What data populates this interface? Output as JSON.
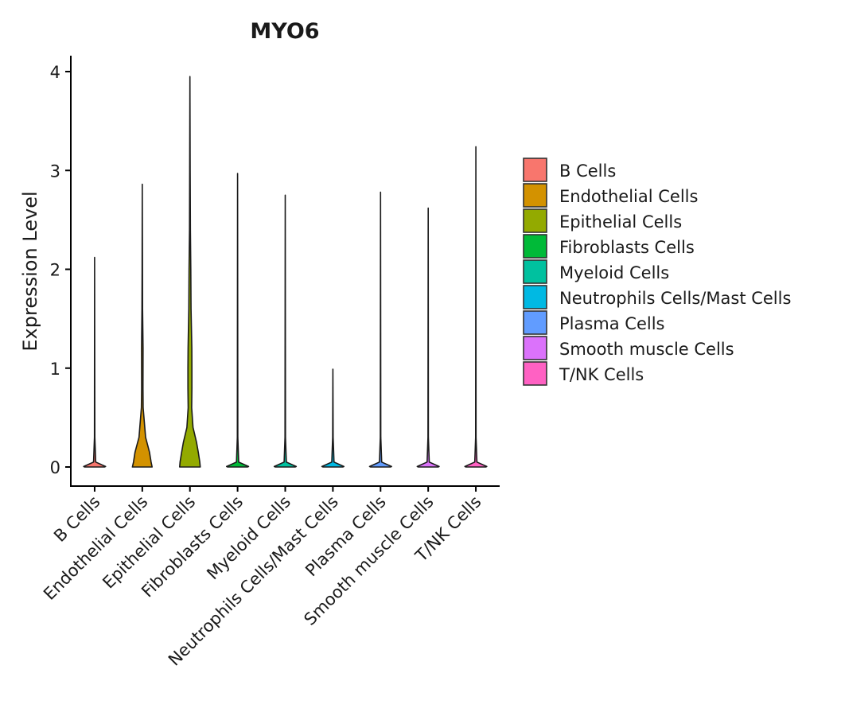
{
  "chart_data": {
    "type": "violin",
    "title": "MYO6",
    "xlabel": "",
    "ylabel": "Expression Level",
    "ylim": [
      -0.03,
      4.15
    ],
    "yticks": [
      0,
      1,
      2,
      3,
      4
    ],
    "grid": false,
    "legend_position": "right",
    "categories": [
      "B Cells",
      "Endothelial Cells",
      "Epithelial Cells",
      "Fibroblasts Cells",
      "Myeloid Cells",
      "Neutrophils Cells/Mast Cells",
      "Plasma Cells",
      "Smooth muscle Cells",
      "T/NK Cells"
    ],
    "colors": [
      "#F8766D",
      "#D39200",
      "#93AA00",
      "#00BA38",
      "#00C19F",
      "#00B9E3",
      "#619CFF",
      "#DB72FB",
      "#FF61C3"
    ],
    "max_values": [
      2.12,
      2.86,
      3.95,
      2.97,
      2.75,
      0.99,
      2.78,
      2.62,
      3.24
    ],
    "density_profiles": [
      [
        [
          0,
          0.45
        ],
        [
          0.005,
          0.5
        ],
        [
          0.05,
          0.05
        ],
        [
          0.3,
          0.01
        ],
        [
          2.12,
          0.0
        ]
      ],
      [
        [
          0,
          0.45
        ],
        [
          0.05,
          0.4
        ],
        [
          0.15,
          0.33
        ],
        [
          0.3,
          0.15
        ],
        [
          0.6,
          0.04
        ],
        [
          0.8,
          0.03
        ],
        [
          1.2,
          0.035
        ],
        [
          1.6,
          0.015
        ],
        [
          2.0,
          0.01
        ],
        [
          2.86,
          0.0
        ]
      ],
      [
        [
          0,
          0.47
        ],
        [
          0.05,
          0.45
        ],
        [
          0.15,
          0.38
        ],
        [
          0.25,
          0.3
        ],
        [
          0.4,
          0.14
        ],
        [
          0.6,
          0.08
        ],
        [
          0.8,
          0.09
        ],
        [
          1.0,
          0.09
        ],
        [
          1.2,
          0.085
        ],
        [
          1.6,
          0.05
        ],
        [
          2.0,
          0.04
        ],
        [
          2.4,
          0.02
        ],
        [
          3.0,
          0.01
        ],
        [
          3.95,
          0.0
        ]
      ],
      [
        [
          0,
          0.45
        ],
        [
          0.005,
          0.5
        ],
        [
          0.05,
          0.05
        ],
        [
          0.3,
          0.01
        ],
        [
          2.97,
          0.0
        ]
      ],
      [
        [
          0,
          0.45
        ],
        [
          0.005,
          0.5
        ],
        [
          0.05,
          0.05
        ],
        [
          0.3,
          0.01
        ],
        [
          2.75,
          0.0
        ]
      ],
      [
        [
          0,
          0.45
        ],
        [
          0.005,
          0.5
        ],
        [
          0.05,
          0.05
        ],
        [
          0.3,
          0.01
        ],
        [
          0.99,
          0.0
        ]
      ],
      [
        [
          0,
          0.45
        ],
        [
          0.005,
          0.5
        ],
        [
          0.05,
          0.05
        ],
        [
          0.3,
          0.01
        ],
        [
          2.78,
          0.0
        ]
      ],
      [
        [
          0,
          0.45
        ],
        [
          0.005,
          0.5
        ],
        [
          0.05,
          0.05
        ],
        [
          0.3,
          0.01
        ],
        [
          2.62,
          0.0
        ]
      ],
      [
        [
          0,
          0.45
        ],
        [
          0.005,
          0.5
        ],
        [
          0.05,
          0.05
        ],
        [
          0.3,
          0.01
        ],
        [
          3.24,
          0.0
        ]
      ]
    ],
    "legend": [
      "B Cells",
      "Endothelial Cells",
      "Epithelial Cells",
      "Fibroblasts Cells",
      "Myeloid Cells",
      "Neutrophils Cells/Mast Cells",
      "Plasma Cells",
      "Smooth muscle Cells",
      "T/NK Cells"
    ]
  }
}
